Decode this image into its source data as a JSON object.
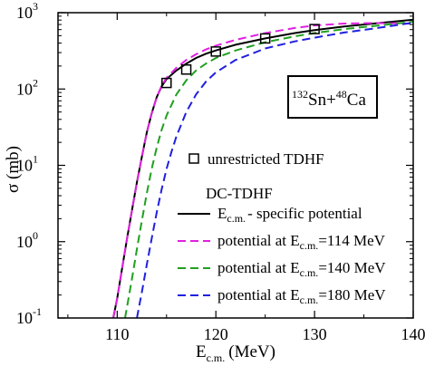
{
  "chart_data": {
    "type": "line",
    "xlabel": {
      "main": "E",
      "sub": "c.m.",
      "unit": "(MeV)"
    },
    "ylabel": "σ (mb)",
    "xlim": [
      104,
      140
    ],
    "ylim": [
      0.1,
      1000
    ],
    "yscale": "log",
    "x_ticks": [
      110,
      120,
      130,
      140
    ],
    "x_tick_labels": [
      "110",
      "120",
      "130",
      "140"
    ],
    "y_ticks": [
      0.1,
      1,
      10,
      100,
      1000
    ],
    "y_tick_labels": [
      {
        "base": "10",
        "exp": "-1"
      },
      {
        "base": "10",
        "exp": "0"
      },
      {
        "base": "10",
        "exp": "1"
      },
      {
        "base": "10",
        "exp": "2"
      },
      {
        "base": "10",
        "exp": "3"
      }
    ],
    "annotation": {
      "a1": "132",
      "s1": "Sn+",
      "a2": "48",
      "s2": "Ca"
    },
    "legend_placement": "bottom-right",
    "legend": {
      "markers_label": "unrestricted TDHF",
      "header": "DC-TDHF",
      "entries": [
        {
          "pre": "E",
          "sub": "c.m.",
          "post": "- specific potential"
        },
        {
          "pre": "potential at E",
          "sub": "c.m.",
          "post": "=114 MeV"
        },
        {
          "pre": "potential at E",
          "sub": "c.m.",
          "post": "=140 MeV"
        },
        {
          "pre": "potential at E",
          "sub": "c.m.",
          "post": "=180 MeV"
        }
      ]
    },
    "markers": {
      "x": [
        115,
        117,
        120,
        125,
        130
      ],
      "y": [
        120,
        180,
        310,
        460,
        610
      ]
    },
    "series": [
      {
        "color": "#000000",
        "style": "solid",
        "x": [
          109.6,
          110,
          110.5,
          111,
          111.5,
          112,
          112.5,
          113,
          113.5,
          114,
          114.5,
          115,
          116,
          117,
          118,
          119,
          120,
          122,
          125,
          128,
          130,
          133,
          136,
          140
        ],
        "y": [
          0.1,
          0.18,
          0.45,
          1.1,
          2.6,
          6,
          13,
          27,
          48,
          78,
          108,
          135,
          175,
          215,
          255,
          290,
          320,
          380,
          460,
          540,
          590,
          660,
          720,
          810
        ]
      },
      {
        "color": "#e020e0",
        "style": "dashed",
        "x": [
          109.6,
          110,
          110.5,
          111,
          111.5,
          112,
          112.5,
          113,
          113.5,
          114,
          114.5,
          115,
          116,
          117,
          118,
          119,
          120,
          122,
          125,
          128,
          130,
          133,
          136,
          140
        ],
        "y": [
          0.1,
          0.18,
          0.45,
          1.1,
          2.6,
          6,
          13,
          27,
          48,
          78,
          110,
          140,
          190,
          240,
          285,
          330,
          370,
          440,
          540,
          630,
          680,
          720,
          730,
          720
        ]
      },
      {
        "color": "#20a020",
        "style": "dashed",
        "x": [
          110.8,
          111,
          111.5,
          112,
          112.5,
          113,
          113.5,
          114,
          114.5,
          115,
          116,
          117,
          118,
          119,
          120,
          122,
          125,
          128,
          130,
          133,
          136,
          140
        ],
        "y": [
          0.1,
          0.14,
          0.33,
          0.8,
          1.9,
          4.3,
          9,
          17,
          29,
          45,
          85,
          130,
          175,
          215,
          255,
          320,
          410,
          490,
          540,
          610,
          670,
          760
        ]
      },
      {
        "color": "#2020e0",
        "style": "dashed",
        "x": [
          112,
          112.5,
          113,
          113.5,
          114,
          114.5,
          115,
          115.5,
          116,
          117,
          118,
          119,
          120,
          122,
          125,
          128,
          130,
          133,
          136,
          140
        ],
        "y": [
          0.1,
          0.22,
          0.5,
          1.1,
          2.4,
          4.8,
          9,
          15,
          24,
          50,
          85,
          125,
          165,
          240,
          340,
          420,
          470,
          550,
          620,
          740
        ]
      }
    ]
  }
}
